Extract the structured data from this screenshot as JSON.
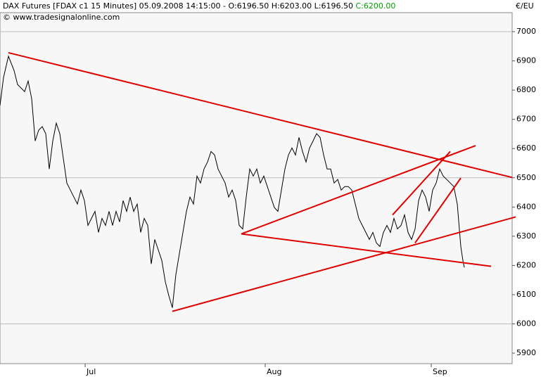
{
  "header": {
    "label": "DAX Futures [FDAX c1  15 Minutes] 05.09.2008 14:15:00 -",
    "ohlc": [
      "O:6196.50",
      "H:6203.00",
      "L:6196.50"
    ],
    "close": "C:6200.00",
    "close_color": "#00a000",
    "source": "© www.tradesignalonline.com",
    "currency": "€/EU"
  },
  "chart_data": {
    "type": "line",
    "color": "#000000",
    "x": [
      0,
      0.5,
      1.2,
      2,
      2.5,
      3.5,
      4,
      4.5,
      5,
      5.5,
      6,
      6.5,
      7,
      7.5,
      8,
      8.5,
      9,
      9.5,
      10,
      10.5,
      11,
      11.5,
      12,
      12.5,
      13,
      13.5,
      14,
      14.5,
      15,
      15.5,
      16,
      16.5,
      17,
      17.5,
      18,
      18.5,
      19,
      19.5,
      20,
      20.5,
      21,
      21.5,
      22,
      22.5,
      23,
      23.5,
      24,
      24.5,
      25,
      25.5,
      26,
      26.5,
      27,
      27.5,
      28,
      28.5,
      29,
      29.5,
      30,
      30.5,
      31,
      31.5,
      32,
      32.5,
      33,
      33.5,
      34,
      34.5,
      35,
      35.5,
      36,
      36.5,
      37,
      37.5,
      38,
      38.5,
      39,
      39.5,
      40,
      40.5,
      41,
      41.5,
      42,
      42.5,
      43,
      43.5,
      44,
      44.5,
      45,
      45.5,
      46,
      46.5,
      47,
      47.5,
      48,
      48.5,
      49,
      49.5,
      50,
      50.5,
      51,
      51.5,
      52,
      52.5,
      53,
      53.5,
      54,
      54.5,
      55,
      55.5,
      56,
      56.5,
      57,
      57.5,
      58,
      58.5,
      59,
      59.5,
      60,
      60.5,
      61,
      61.5,
      62,
      62.5,
      63,
      63.5,
      64,
      64.5,
      65,
      65.5,
      65.8,
      66
    ],
    "values": [
      6747,
      6843,
      6916,
      6867,
      6819,
      6795,
      6831,
      6771,
      6626,
      6663,
      6675,
      6651,
      6530,
      6626,
      6687,
      6651,
      6566,
      6482,
      6458,
      6434,
      6410,
      6458,
      6422,
      6337,
      6361,
      6385,
      6313,
      6361,
      6337,
      6385,
      6337,
      6385,
      6349,
      6422,
      6385,
      6434,
      6385,
      6410,
      6313,
      6361,
      6337,
      6205,
      6289,
      6253,
      6217,
      6144,
      6096,
      6055,
      6169,
      6241,
      6313,
      6385,
      6434,
      6410,
      6506,
      6482,
      6530,
      6554,
      6590,
      6578,
      6530,
      6506,
      6482,
      6434,
      6458,
      6422,
      6337,
      6325,
      6434,
      6530,
      6506,
      6530,
      6482,
      6506,
      6470,
      6434,
      6398,
      6385,
      6458,
      6530,
      6578,
      6602,
      6578,
      6638,
      6590,
      6554,
      6602,
      6626,
      6651,
      6638,
      6578,
      6530,
      6530,
      6482,
      6494,
      6458,
      6470,
      6470,
      6458,
      6410,
      6361,
      6337,
      6313,
      6289,
      6313,
      6277,
      6265,
      6313,
      6337,
      6313,
      6361,
      6325,
      6337,
      6373,
      6313,
      6289,
      6325,
      6422,
      6458,
      6434,
      6385,
      6458,
      6482,
      6530,
      6506,
      6494,
      6482,
      6470,
      6410,
      6265,
      6217,
      6193
    ],
    "xlim": [
      0,
      72.8
    ],
    "ylim": [
      5864,
      7065
    ],
    "xticks": [
      {
        "value": 12.1,
        "label": "Jul"
      },
      {
        "value": 37.7,
        "label": "Aug"
      },
      {
        "value": 61.3,
        "label": "Sep"
      }
    ],
    "yticks": [
      5900,
      6000,
      6100,
      6200,
      6300,
      6400,
      6500,
      6600,
      6700,
      6800,
      6900,
      7000
    ],
    "hgrid": [
      6000,
      6500,
      7000
    ],
    "trendline_color": "#e00000",
    "trendlines": [
      {
        "x": [
          1.2,
          72.8
        ],
        "y": [
          6928,
          6501
        ]
      },
      {
        "x": [
          24.5,
          73.3
        ],
        "y": [
          6043,
          6366
        ]
      },
      {
        "x": [
          34.3,
          69.8
        ],
        "y": [
          6308,
          6197
        ]
      },
      {
        "x": [
          34.3,
          67.6
        ],
        "y": [
          6308,
          6610
        ]
      },
      {
        "x": [
          55.8,
          64
        ],
        "y": [
          6373,
          6590
        ]
      },
      {
        "x": [
          59,
          65.5
        ],
        "y": [
          6277,
          6499
        ]
      }
    ]
  }
}
